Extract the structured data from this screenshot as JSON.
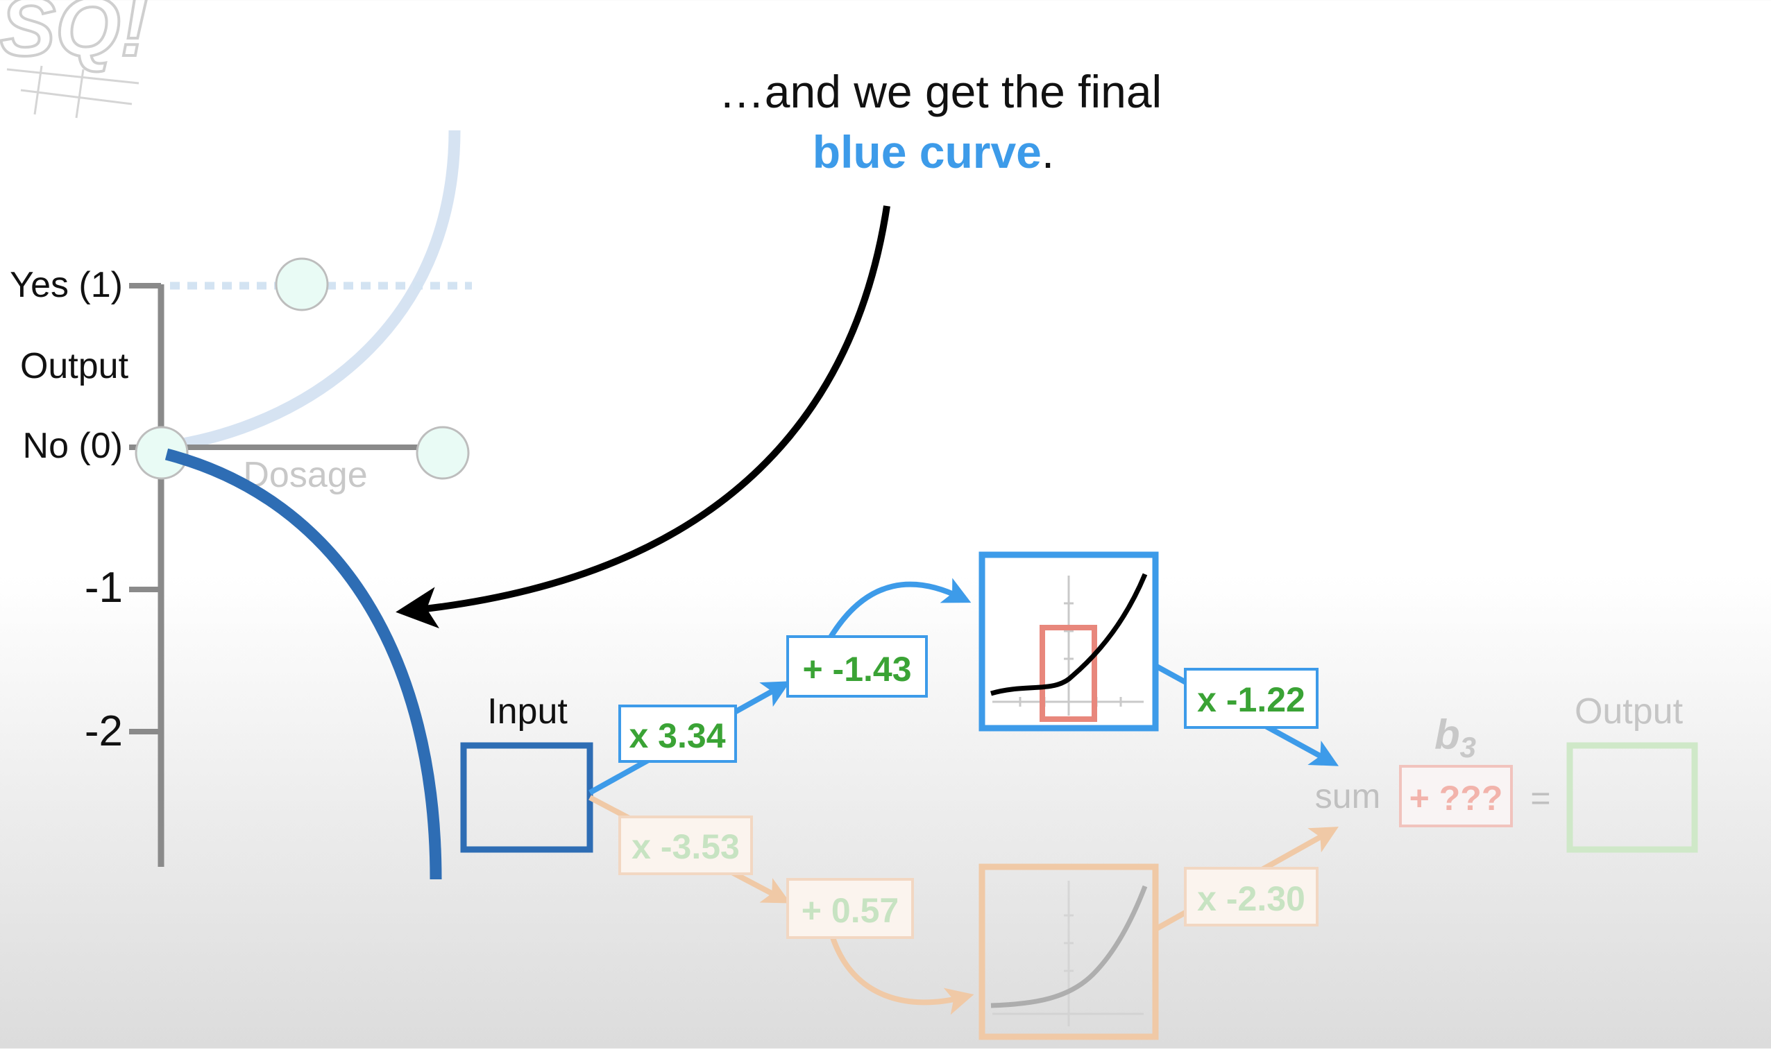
{
  "caption": {
    "line1": "…and we get the final",
    "highlight": "blue curve",
    "end": "."
  },
  "axes": {
    "y_title": "Output",
    "x_title": "Dosage",
    "ticks": [
      {
        "label": "Yes (1)",
        "value": 1
      },
      {
        "label": "No (0)",
        "value": 0
      },
      {
        "label": "-1",
        "value": -1
      },
      {
        "label": "-2",
        "value": -2
      }
    ]
  },
  "network": {
    "input_label": "Input",
    "top_path": {
      "weight1": "x 3.34",
      "bias1": "+ -1.43",
      "weight2": "x -1.22"
    },
    "bottom_path": {
      "weight1": "x -3.53",
      "bias1": "+ 0.57",
      "weight2": "x -2.30"
    },
    "sum_label": "sum",
    "final_bias_name": "b",
    "final_bias_sub": "3",
    "final_bias_value": "+ ???",
    "equals": "=",
    "output_label": "Output"
  },
  "colors": {
    "accent_blue": "#3d9be9",
    "dark_blue": "#2e6db4",
    "green": "#3aa335",
    "orange_faded": "#f0c9a6",
    "pink_box": "#e8877c"
  }
}
